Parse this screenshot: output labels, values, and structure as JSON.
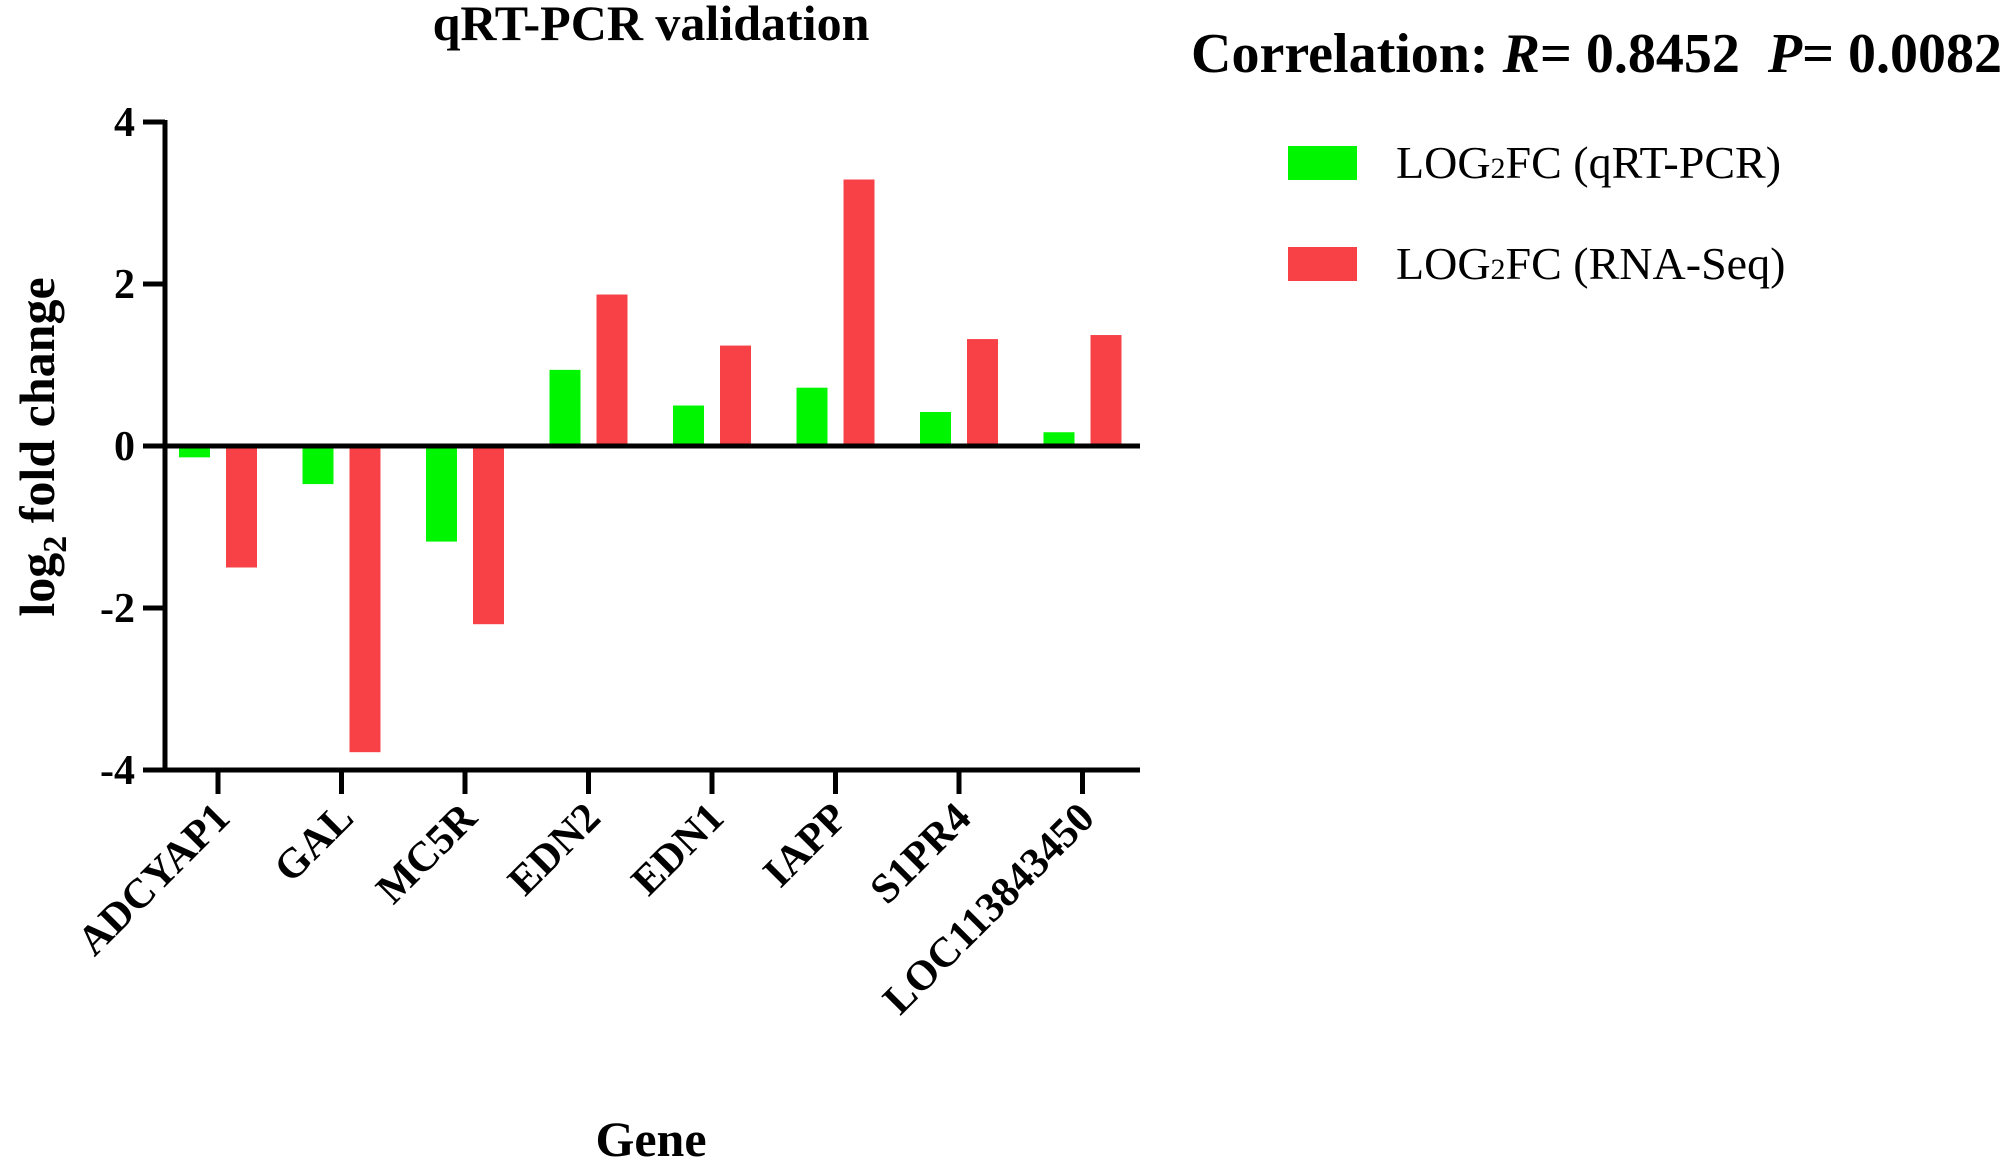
{
  "chart_data": {
    "type": "bar",
    "title": "qRT-PCR validation",
    "annotation": {
      "label": "Correlation: ",
      "r_symbol": "R",
      "r_value": "= 0.8452",
      "p_symbol": "P",
      "p_value": "= 0.0082"
    },
    "xlabel": "Gene",
    "ylabel": {
      "prefix": "log",
      "subscript": "2",
      "suffix": " fold change"
    },
    "ylim": [
      -4,
      4
    ],
    "yticks": [
      4,
      2,
      0,
      -2,
      -4
    ],
    "ytick_labels": [
      "4",
      "2",
      "0",
      "-2",
      "-4"
    ],
    "categories": [
      "ADCYAP1",
      "GAL",
      "MC5R",
      "EDN2",
      "EDN1",
      "IAPP",
      "S1PR4",
      "LOC113843450"
    ],
    "series": [
      {
        "name": "LOG2FC (qRT-PCR)",
        "legend": {
          "prefix": "LOG",
          "subscript": "2",
          "suffix": "FC (qRT-PCR)"
        },
        "color": "#00f500",
        "values": [
          -0.14,
          -0.47,
          -1.18,
          0.94,
          0.5,
          0.72,
          0.42,
          0.17
        ]
      },
      {
        "name": "LOG2FC (RNA-Seq)",
        "legend": {
          "prefix": "LOG",
          "subscript": "2",
          "suffix": "FC (RNA-Seq)"
        },
        "color": "#f74147",
        "values": [
          -1.5,
          -3.78,
          -2.2,
          1.87,
          1.24,
          3.29,
          1.32,
          1.37
        ]
      }
    ],
    "grid": false,
    "legend_position": "top-right"
  }
}
